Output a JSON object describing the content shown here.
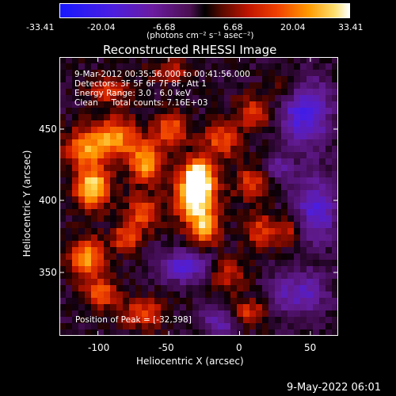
{
  "colorbar": {
    "tick_labels": [
      "-33.41",
      "-20.04",
      "-6.68",
      "6.68",
      "20.04",
      "33.41"
    ],
    "units_label": "(photons cm⁻² s⁻¹ asec⁻²)"
  },
  "title": "Reconstructed RHESSI Image",
  "annotations": {
    "time_range": "9-Mar-2012 00:35:56.000 to 00:41:56.000",
    "detectors": "Detectors: 3F 5F 6F 7F 8F, Att 1",
    "energy_range": "Energy Range: 3.0 - 6.0 keV",
    "algorithm_counts": "Clean     Total counts: 7.16E+03",
    "peak_position": "Position of Peak = [-32,398]"
  },
  "axes": {
    "x_label": "Heliocentric X (arcsec)",
    "y_label": "Heliocentric Y (arcsec)",
    "x_ticks": [
      "-100",
      "-50",
      "0",
      "50"
    ],
    "y_ticks": [
      "450",
      "400",
      "350"
    ]
  },
  "footer_timestamp": "9-May-2022 06:01",
  "image_data": {
    "x_range": [
      -127,
      70
    ],
    "y_range": [
      302,
      498
    ],
    "grid": [
      44,
      44
    ],
    "peak": [
      -32,
      398
    ],
    "color_range": [
      -33.41,
      33.41
    ]
  }
}
